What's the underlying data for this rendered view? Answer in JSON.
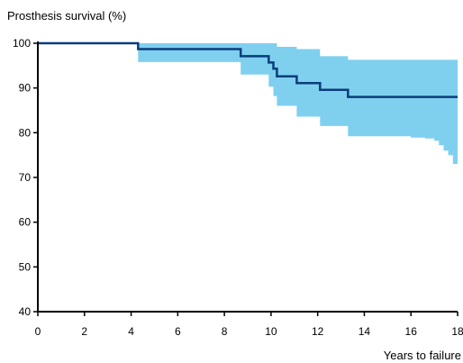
{
  "chart_data": {
    "type": "line",
    "title": "",
    "ylabel": "Prosthesis survival (%)",
    "xlabel": "Years to failure",
    "xlim": [
      0,
      18
    ],
    "ylim": [
      40,
      100
    ],
    "x_ticks": [
      0,
      2,
      4,
      6,
      8,
      10,
      12,
      14,
      16,
      18
    ],
    "y_ticks": [
      40,
      50,
      60,
      70,
      80,
      90,
      100
    ],
    "grid": false,
    "legend": "none",
    "colors": {
      "line": "#0a3d7a",
      "band": "#7fd0ee",
      "axis": "#000000"
    },
    "series": [
      {
        "kind": "step",
        "x": [
          0,
          4.3,
          8.7,
          9.9,
          10.1,
          10.25,
          11.1,
          12.1,
          13.3,
          18
        ],
        "y": [
          100,
          98.7,
          97.1,
          95.7,
          94.3,
          92.6,
          91.1,
          89.6,
          88.0,
          88.0
        ]
      }
    ],
    "confidence_band": {
      "x": [
        0,
        4.3,
        8.7,
        9.9,
        10.1,
        10.25,
        11.1,
        12.1,
        13.3,
        16.0,
        16.6,
        17.0,
        17.2,
        17.4,
        17.6,
        17.8,
        18.0
      ],
      "upper": [
        100,
        100,
        100,
        100,
        100,
        99.2,
        98.7,
        97.1,
        96.3,
        96.3,
        96.3,
        96.3,
        96.3,
        96.3,
        96.3,
        96.3,
        96.3
      ],
      "lower": [
        100,
        95.8,
        93.0,
        90.3,
        88.2,
        86.0,
        83.6,
        81.5,
        79.2,
        78.9,
        78.7,
        78.2,
        77.2,
        76.0,
        75.0,
        73.0,
        70.0
      ]
    }
  }
}
